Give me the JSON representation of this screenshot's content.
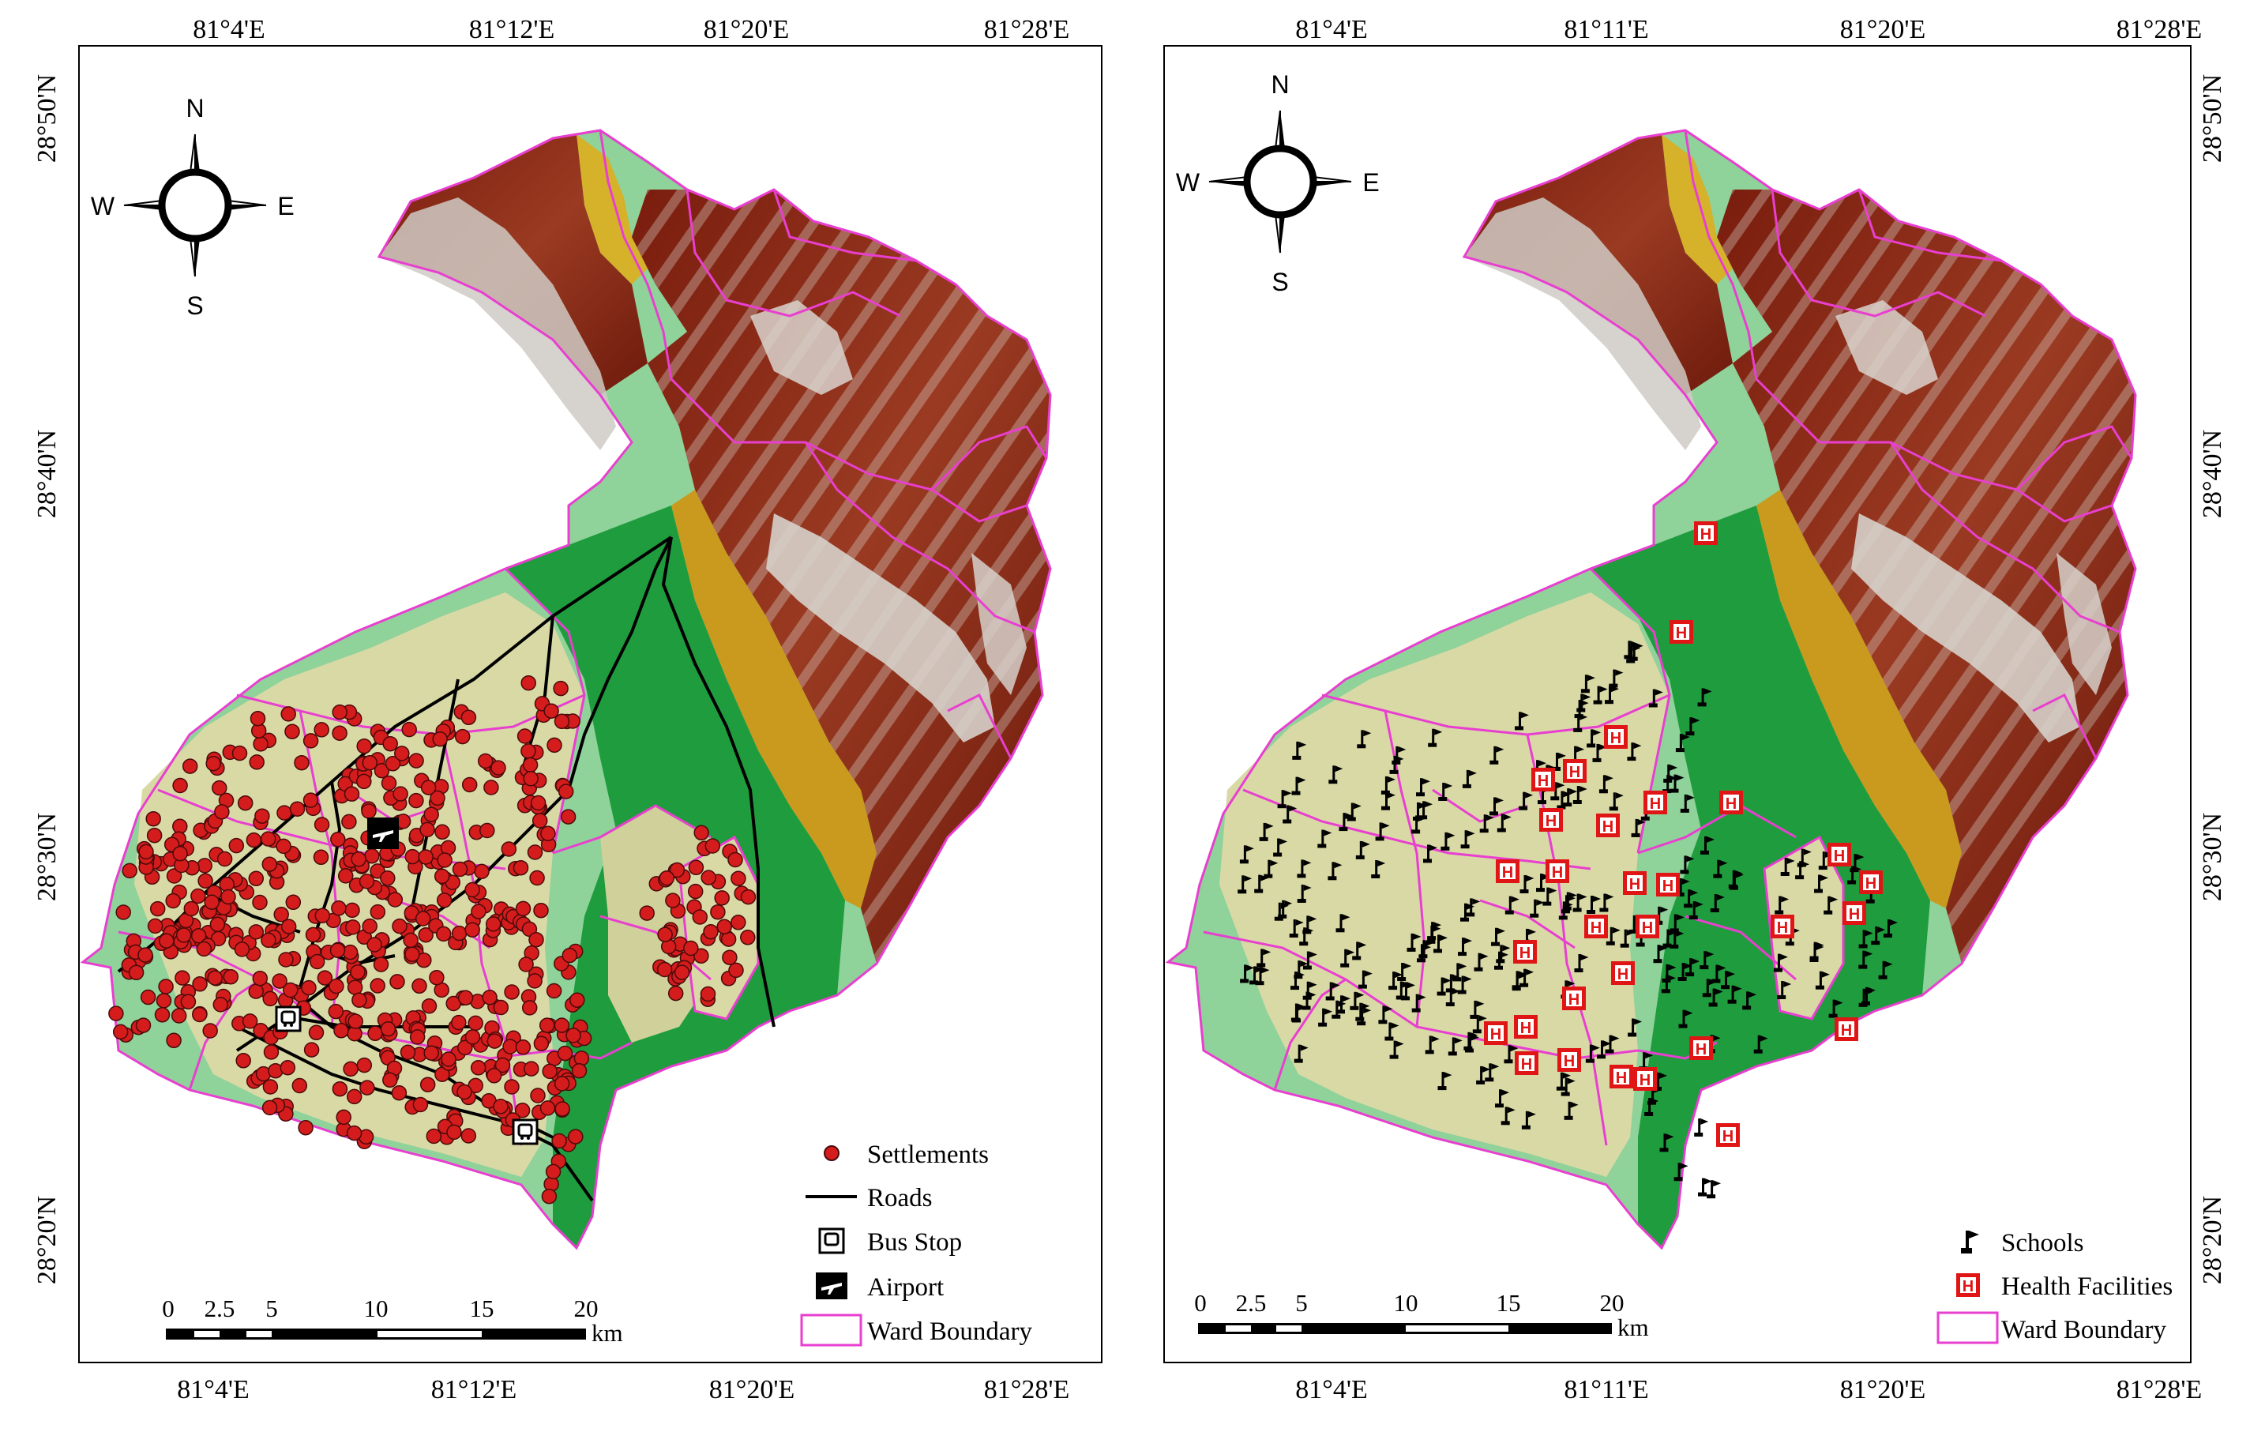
{
  "maps": [
    {
      "top_labels": [
        "81°4'E",
        "81°12'E",
        "81°20'E",
        "81°28'E"
      ],
      "bottom_labels": [
        "81°4'E",
        "81°12'E",
        "81°20'E",
        "81°28'E"
      ],
      "side_labels": [
        "28°50'N",
        "28°40'N",
        "28°30'N",
        "28°20'N"
      ],
      "compass": {
        "n": "N",
        "s": "S",
        "e": "E",
        "w": "W"
      },
      "scale": {
        "ticks": [
          "0",
          "2.5",
          "5",
          "10",
          "15",
          "20"
        ],
        "unit": "km"
      },
      "legend": [
        {
          "label": "Settlements",
          "symbol": "settlement-dot-icon"
        },
        {
          "label": "Roads",
          "symbol": "road-line-icon"
        },
        {
          "label": "Bus Stop",
          "symbol": "bus-stop-icon"
        },
        {
          "label": "Airport",
          "symbol": "airport-icon"
        },
        {
          "label": "Ward Boundary",
          "symbol": "ward-boundary-box-icon"
        }
      ]
    },
    {
      "top_labels": [
        "81°4'E",
        "81°11'E",
        "81°20'E",
        "81°28'E"
      ],
      "bottom_labels": [
        "81°4'E",
        "81°11'E",
        "81°20'E",
        "81°28'E"
      ],
      "side_labels": [
        "28°50'N",
        "28°40'N",
        "28°30'N",
        "28°20'N"
      ],
      "compass": {
        "n": "N",
        "s": "S",
        "e": "E",
        "w": "W"
      },
      "scale": {
        "ticks": [
          "0",
          "2.5",
          "5",
          "10",
          "15",
          "20"
        ],
        "unit": "km"
      },
      "legend": [
        {
          "label": "Schools",
          "symbol": "school-flag-icon"
        },
        {
          "label": "Health Facilities",
          "symbol": "health-facility-icon"
        },
        {
          "label": "Ward Boundary",
          "symbol": "ward-boundary-box-icon"
        }
      ]
    }
  ],
  "colors": {
    "ward_boundary": "#e83fd0",
    "settlement": "#d41c1c",
    "health": "#e01515",
    "dem_low": "#8fd29a",
    "dem_plain": "#d9d9a6",
    "dem_forest": "#1f9c3d",
    "dem_ochre": "#c99a1e",
    "dem_brown": "#8a2412",
    "dem_peak": "#e8e8e8"
  }
}
